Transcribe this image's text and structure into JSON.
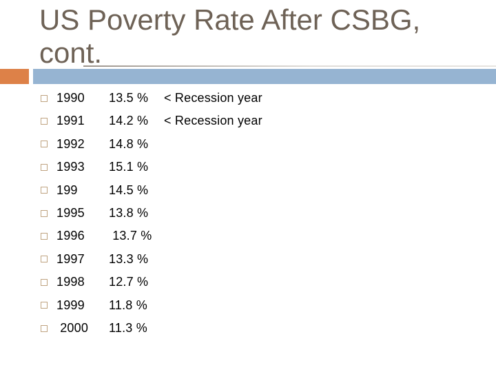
{
  "slide": {
    "title_line1": "US Poverty Rate After CSBG,",
    "title_line2": "cont.",
    "colors": {
      "title_text": "#6E6256",
      "accent_orange": "#DD8148",
      "accent_blue": "#96B4D2",
      "bullet_border": "#BFA380",
      "rule_line_gray": "#9C948C",
      "body_text": "#000000",
      "background": "#FFFFFF"
    }
  },
  "list": {
    "rows": [
      {
        "year": "1990",
        "pct": "13.5 %",
        "note": "< Recession year"
      },
      {
        "year": "1991",
        "pct": "14.2 %",
        "note": "< Recession year"
      },
      {
        "year": "1992",
        "pct": "14.8 %",
        "note": ""
      },
      {
        "year": "1993",
        "pct": "15.1 %",
        "note": ""
      },
      {
        "year": "199",
        "pct": "14.5 %",
        "note": ""
      },
      {
        "year": "1995",
        "pct": "13.8 %",
        "note": ""
      },
      {
        "year": "1996",
        "pct": " 13.7 %",
        "note": ""
      },
      {
        "year": "1997",
        "pct": "13.3 %",
        "note": ""
      },
      {
        "year": "1998",
        "pct": "12.7 %",
        "note": ""
      },
      {
        "year": "1999",
        "pct": "11.8 %",
        "note": ""
      },
      {
        "year": " 2000",
        "pct": "11.3 %",
        "note": ""
      }
    ]
  }
}
